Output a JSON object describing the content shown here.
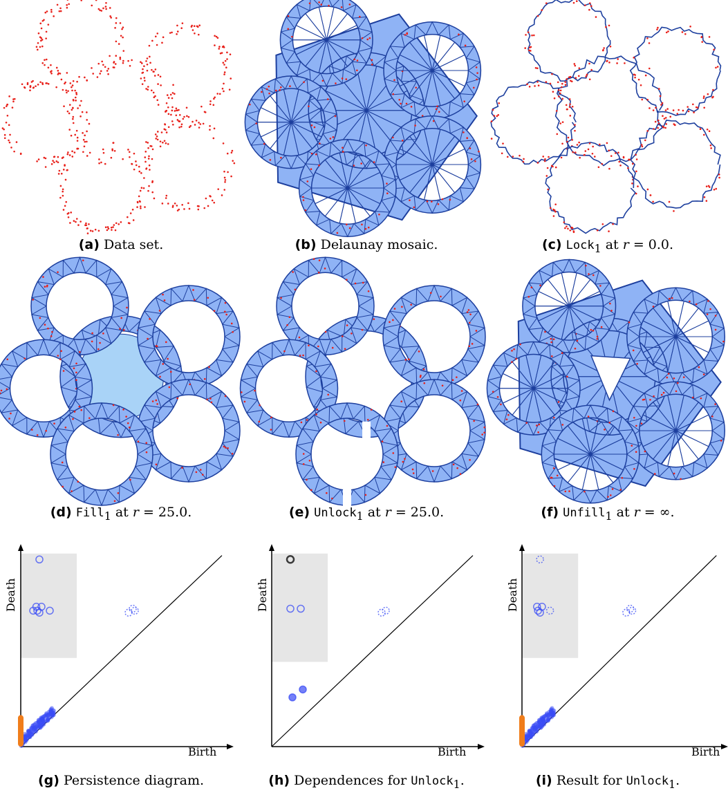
{
  "colors": {
    "points": "#e8201a",
    "edges": "#1d3f9e",
    "fill": "#8fb3f5",
    "fill_center": "#a9d3f7",
    "persistence_points": "#3a4cf5",
    "dimension0": "#f07d1b",
    "shaded_region": "#e6e6e6",
    "highlight": "#000000"
  },
  "panels": {
    "a": {
      "label": "(a)",
      "text": "Data set."
    },
    "b": {
      "label": "(b)",
      "text": "Delaunay mosaic."
    },
    "c": {
      "label": "(c)",
      "mono": "Lock",
      "sub": "1",
      "mid": " at ",
      "var": "r",
      "eq": " = 0.0."
    },
    "d": {
      "label": "(d)",
      "mono": "Fill",
      "sub": "1",
      "mid": " at ",
      "var": "r",
      "eq": " = 25.0."
    },
    "e": {
      "label": "(e)",
      "mono": "Unlock",
      "sub": "1",
      "mid": " at ",
      "var": "r",
      "eq": " = 25.0."
    },
    "f": {
      "label": "(f)",
      "mono": "Unfill",
      "sub": "1",
      "mid": " at ",
      "var": "r",
      "eq": " = ∞."
    },
    "g": {
      "label": "(g)",
      "text": "Persistence diagram."
    },
    "h": {
      "label": "(h)",
      "text": "Dependences for ",
      "mono": "Unlock",
      "sub": "1",
      "end": "."
    },
    "i": {
      "label": "(i)",
      "text": "Result for ",
      "mono": "Unlock",
      "sub": "1",
      "end": "."
    }
  },
  "axes": {
    "x_label": "Birth",
    "y_label": "Death"
  },
  "chart_data": [
    {
      "type": "scatter",
      "title": "",
      "xlabel": "Birth",
      "ylabel": "Death",
      "series": [
        {
          "points": [
            [
              0.09,
              0.95
            ],
            [
              0.075,
              0.71
            ],
            [
              0.1,
              0.71
            ],
            [
              0.08,
              0.69
            ],
            [
              0.09,
              0.68
            ],
            [
              0.06,
              0.69
            ],
            [
              0.14,
              0.69
            ],
            [
              0.52,
              0.68
            ],
            [
              0.54,
              0.7
            ],
            [
              0.55,
              0.69
            ]
          ]
        }
      ]
    },
    {
      "type": "scatter",
      "title": "",
      "xlabel": "Birth",
      "ylabel": "Death",
      "series": [
        {
          "points": [
            [
              0.09,
              0.95
            ],
            [
              0.09,
              0.7
            ],
            [
              0.14,
              0.7
            ],
            [
              0.55,
              0.69
            ],
            [
              0.53,
              0.68
            ],
            [
              0.1,
              0.25
            ],
            [
              0.15,
              0.29
            ]
          ]
        }
      ]
    },
    {
      "type": "scatter",
      "title": "",
      "xlabel": "Birth",
      "ylabel": "Death",
      "series": [
        {
          "points": [
            [
              0.09,
              0.95
            ],
            [
              0.075,
              0.71
            ],
            [
              0.1,
              0.71
            ],
            [
              0.08,
              0.69
            ],
            [
              0.09,
              0.68
            ],
            [
              0.14,
              0.69
            ],
            [
              0.52,
              0.68
            ],
            [
              0.54,
              0.7
            ],
            [
              0.55,
              0.69
            ]
          ]
        }
      ]
    }
  ]
}
